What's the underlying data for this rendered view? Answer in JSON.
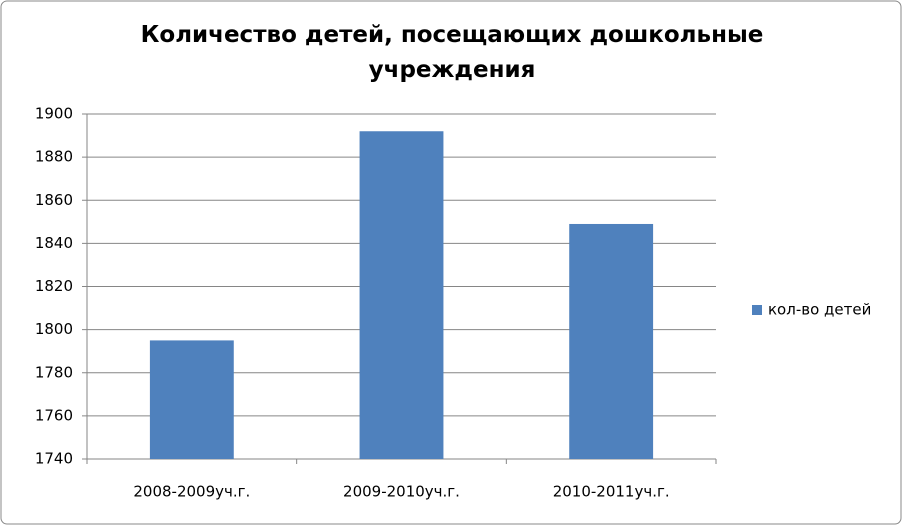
{
  "chart_data": {
    "type": "bar",
    "title": "Количество детей, посещающих дошкольные учреждения",
    "categories": [
      "2008-2009уч.г.",
      "2009-2010уч.г.",
      "2010-2011уч.г."
    ],
    "series": [
      {
        "name": "кол-во детей",
        "color": "#4f81bd",
        "values": [
          1795,
          1892,
          1849
        ]
      }
    ],
    "ylim": [
      1740,
      1900
    ],
    "yticks": [
      1740,
      1760,
      1780,
      1800,
      1820,
      1840,
      1860,
      1880,
      1900
    ],
    "grid": true,
    "legend": "right"
  }
}
